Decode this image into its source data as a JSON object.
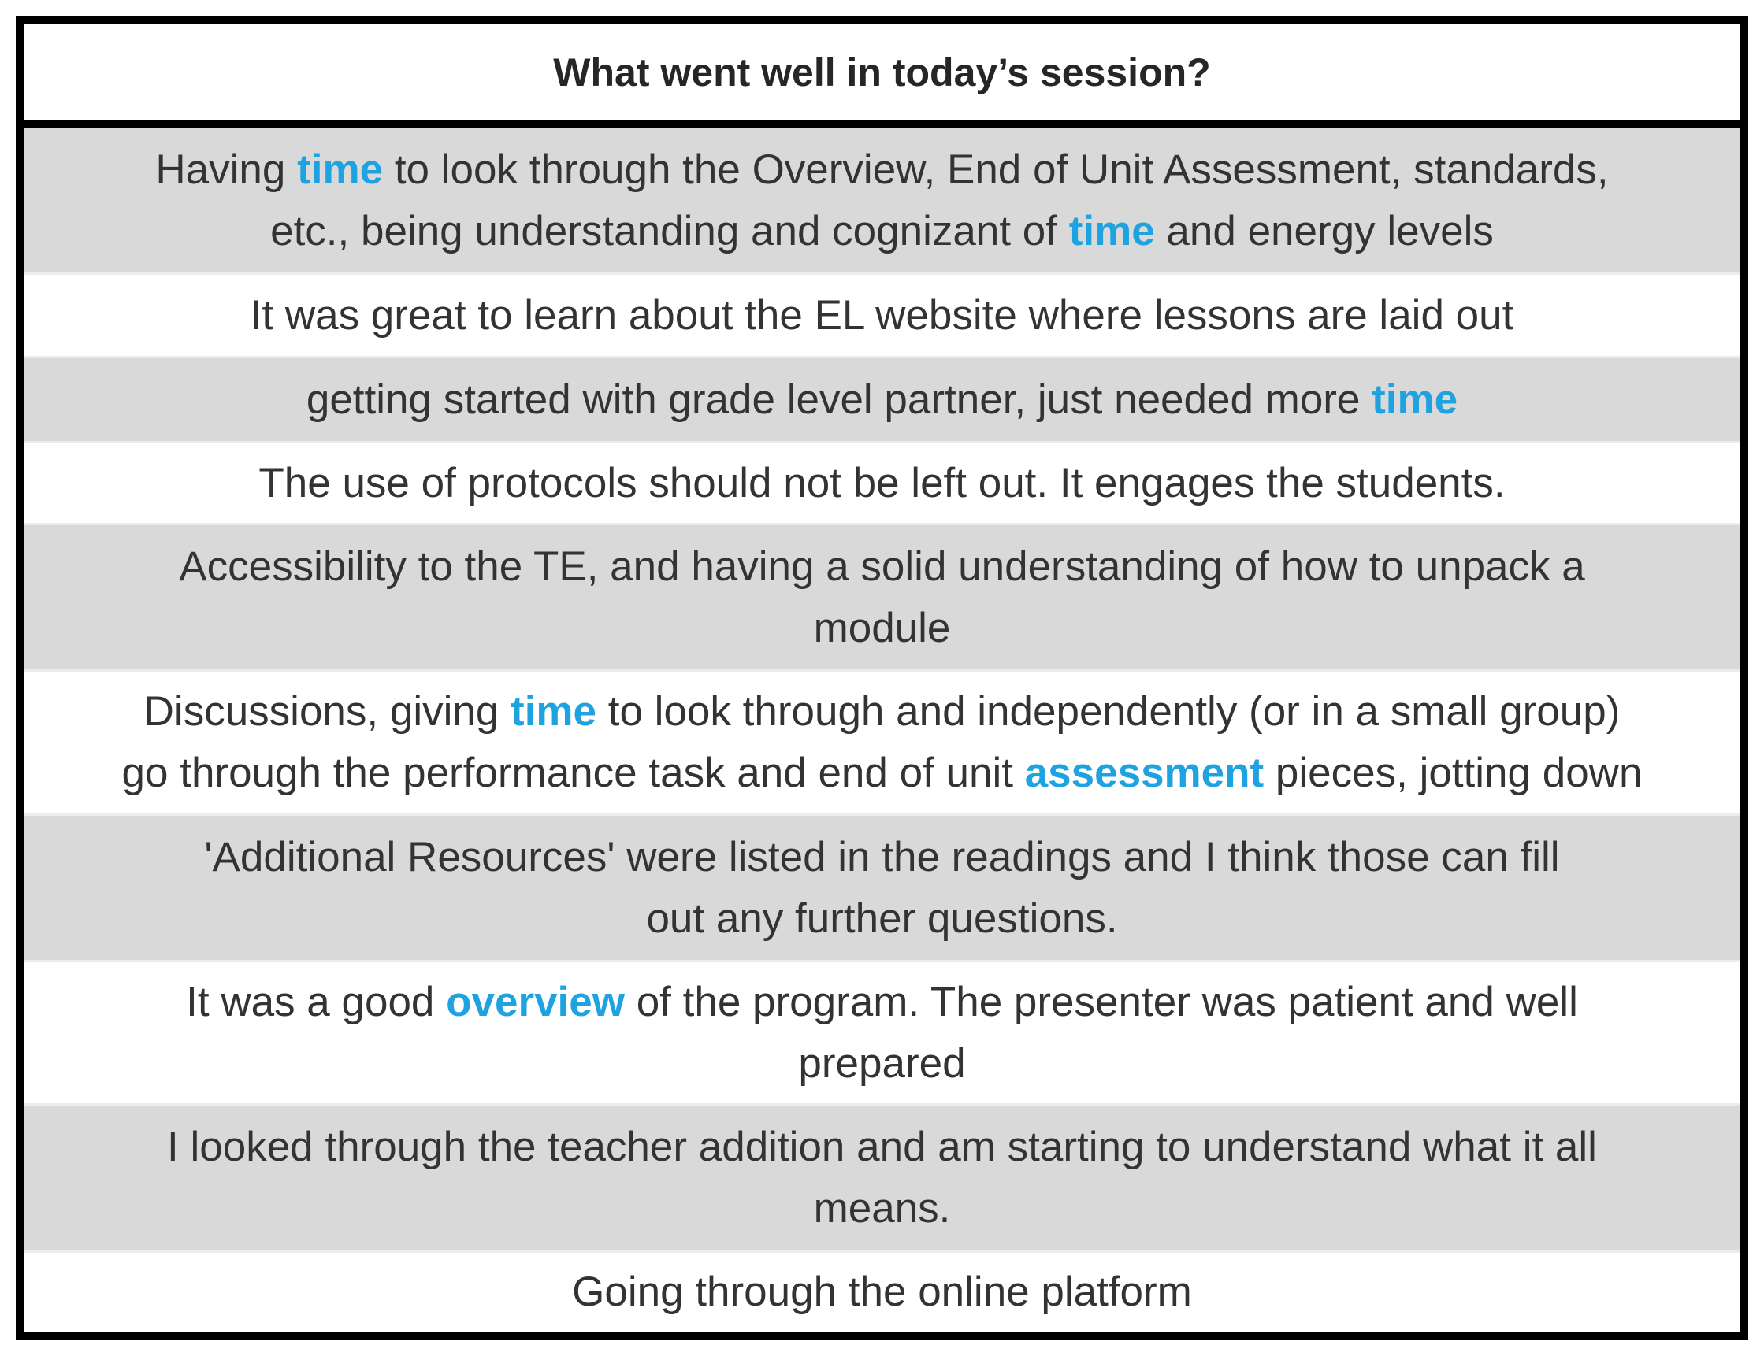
{
  "header": {
    "title": "What went well in today’s session?"
  },
  "accent_color": "#1fa3e0",
  "rows": [
    {
      "shaded": true,
      "segments": [
        {
          "text": "Having "
        },
        {
          "text": "time",
          "highlight": true
        },
        {
          "text": " to look through the Overview, End of Unit Assessment, standards,"
        },
        {
          "break": true
        },
        {
          "text": "etc., being understanding and cognizant of "
        },
        {
          "text": "time",
          "highlight": true
        },
        {
          "text": " and energy levels"
        }
      ]
    },
    {
      "shaded": false,
      "segments": [
        {
          "text": "It was great to learn about the EL website where lessons are laid out"
        }
      ]
    },
    {
      "shaded": true,
      "segments": [
        {
          "text": "getting started with grade level partner, just needed more "
        },
        {
          "text": "time",
          "highlight": true
        }
      ]
    },
    {
      "shaded": false,
      "segments": [
        {
          "text": "The use of protocols should not be left out. It engages the students."
        }
      ]
    },
    {
      "shaded": true,
      "segments": [
        {
          "text": "Accessibility to the TE, and having a solid understanding of how to unpack a"
        },
        {
          "break": true
        },
        {
          "text": "module"
        }
      ]
    },
    {
      "shaded": false,
      "segments": [
        {
          "text": "Discussions, giving "
        },
        {
          "text": "time",
          "highlight": true
        },
        {
          "text": " to look through and independently (or in a small group)"
        },
        {
          "break": true
        },
        {
          "text": "go through the performance task and end of unit "
        },
        {
          "text": "assessment",
          "highlight": true
        },
        {
          "text": " pieces, jotting down"
        }
      ]
    },
    {
      "shaded": true,
      "segments": [
        {
          "text": "'Additional Resources' were listed in the readings and I think those can fill"
        },
        {
          "break": true
        },
        {
          "text": "out any further questions."
        }
      ]
    },
    {
      "shaded": false,
      "segments": [
        {
          "text": "It was a good "
        },
        {
          "text": "overview",
          "highlight": true
        },
        {
          "text": " of the program. The presenter was patient and well"
        },
        {
          "break": true
        },
        {
          "text": "prepared"
        }
      ]
    },
    {
      "shaded": true,
      "segments": [
        {
          "text": "I looked through the teacher addition and am starting to understand what it all"
        },
        {
          "break": true
        },
        {
          "text": "means."
        }
      ]
    },
    {
      "shaded": false,
      "segments": [
        {
          "text": "Going through the online platform"
        }
      ]
    }
  ]
}
